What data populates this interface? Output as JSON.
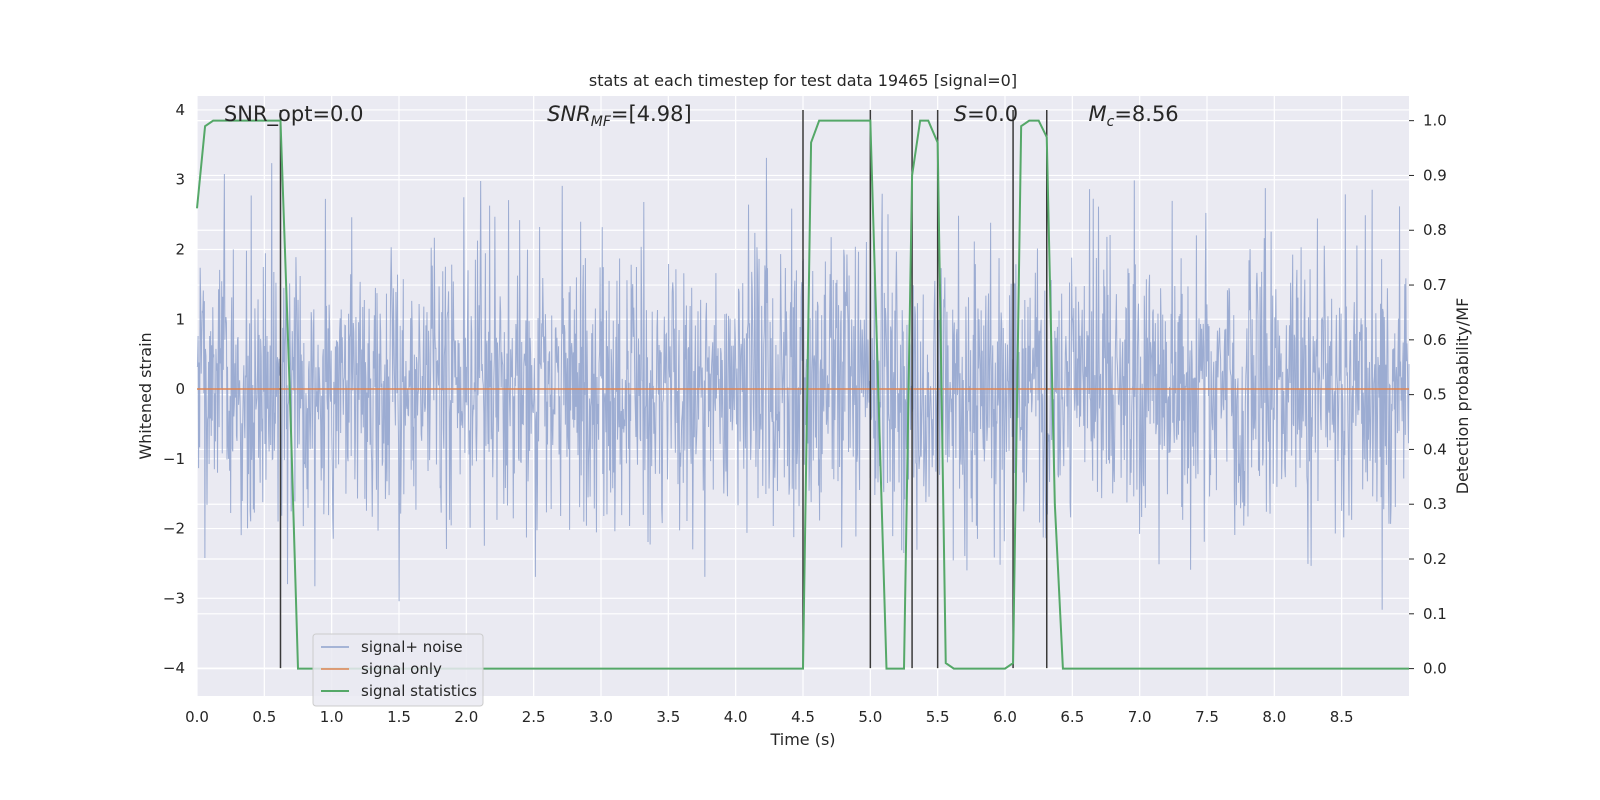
{
  "chart_data": {
    "type": "line",
    "title": "stats at each timestep for test data 19465 [signal=0]",
    "xlabel": "Time (s)",
    "ylabel": "Whitened strain",
    "ylabel_right": "Detection probability/MF",
    "xlim": [
      0,
      9.0
    ],
    "ylim": [
      -4.4,
      4.2
    ],
    "ylim_right": [
      -0.05,
      1.045
    ],
    "xticks": [
      0.0,
      0.5,
      1.0,
      1.5,
      2.0,
      2.5,
      3.0,
      3.5,
      4.0,
      4.5,
      5.0,
      5.5,
      6.0,
      6.5,
      7.0,
      7.5,
      8.0,
      8.5
    ],
    "xtick_labels": [
      "0.0",
      "0.5",
      "1.0",
      "1.5",
      "2.0",
      "2.5",
      "3.0",
      "3.5",
      "4.0",
      "4.5",
      "5.0",
      "5.5",
      "6.0",
      "6.5",
      "7.0",
      "7.5",
      "8.0",
      "8.5"
    ],
    "yticks": [
      -4,
      -3,
      -2,
      -1,
      0,
      1,
      2,
      3,
      4
    ],
    "ytick_labels": [
      "−4",
      "−3",
      "−2",
      "−1",
      "0",
      "1",
      "2",
      "3",
      "4"
    ],
    "yticks_right": [
      0.0,
      0.1,
      0.2,
      0.3,
      0.4,
      0.5,
      0.6,
      0.7,
      0.8,
      0.9,
      1.0
    ],
    "ytick_labels_right": [
      "0.0",
      "0.1",
      "0.2",
      "0.3",
      "0.4",
      "0.5",
      "0.6",
      "0.7",
      "0.8",
      "0.9",
      "1.0"
    ],
    "grid": true,
    "legend_placement": "lower-left",
    "annotations": [
      {
        "text": "SNR_opt=0.0",
        "x": 0.2
      },
      {
        "text": "SNR_MF=[4.98]",
        "x": 2.6
      },
      {
        "text": "S=0.0",
        "x": 5.62
      },
      {
        "text": "M_c=8.56",
        "x": 6.62
      }
    ],
    "series": [
      {
        "name": "signal+ noise",
        "color": "#8ea1cc",
        "axis": "left",
        "noise_std": 1.0,
        "samples": 2304
      },
      {
        "name": "signal only",
        "color": "#dd8452",
        "axis": "left",
        "x": [
          0.0,
          9.0
        ],
        "y": [
          0.0,
          0.0
        ]
      },
      {
        "name": "signal statistics",
        "color": "#55a868",
        "axis": "right",
        "x": [
          0.0,
          0.06,
          0.12,
          0.18,
          0.25,
          0.31,
          0.37,
          0.43,
          0.5,
          0.56,
          0.62,
          0.69,
          0.75,
          1.0,
          2.0,
          3.0,
          4.0,
          4.5,
          4.56,
          4.62,
          4.69,
          4.75,
          4.81,
          4.87,
          5.0,
          5.06,
          5.12,
          5.25,
          5.31,
          5.37,
          5.43,
          5.5,
          5.56,
          5.62,
          5.68,
          5.75,
          5.81,
          5.87,
          5.93,
          6.0,
          6.06,
          6.12,
          6.18,
          6.25,
          6.31,
          6.37,
          6.43,
          6.5,
          7.0,
          8.0,
          9.0
        ],
        "y": [
          0.84,
          0.99,
          1.0,
          1.0,
          1.0,
          1.0,
          1.0,
          1.0,
          1.0,
          1.0,
          1.0,
          0.5,
          0.0,
          0.0,
          0.0,
          0.0,
          0.0,
          0.0,
          0.96,
          1.0,
          1.0,
          1.0,
          1.0,
          1.0,
          1.0,
          0.5,
          0.0,
          0.0,
          0.9,
          1.0,
          1.0,
          0.96,
          0.01,
          0.0,
          0.0,
          0.0,
          0.0,
          0.0,
          0.0,
          0.0,
          0.01,
          0.99,
          1.0,
          1.0,
          0.97,
          0.3,
          0.0,
          0.0,
          0.0,
          0.0,
          0.0
        ]
      }
    ],
    "vertical_lines": {
      "color": "#3a3a3a",
      "x": [
        0.62,
        4.5,
        5.0,
        5.31,
        5.5,
        6.06,
        6.31
      ],
      "y_top": 4.0,
      "y_bottom": -4.0
    }
  }
}
